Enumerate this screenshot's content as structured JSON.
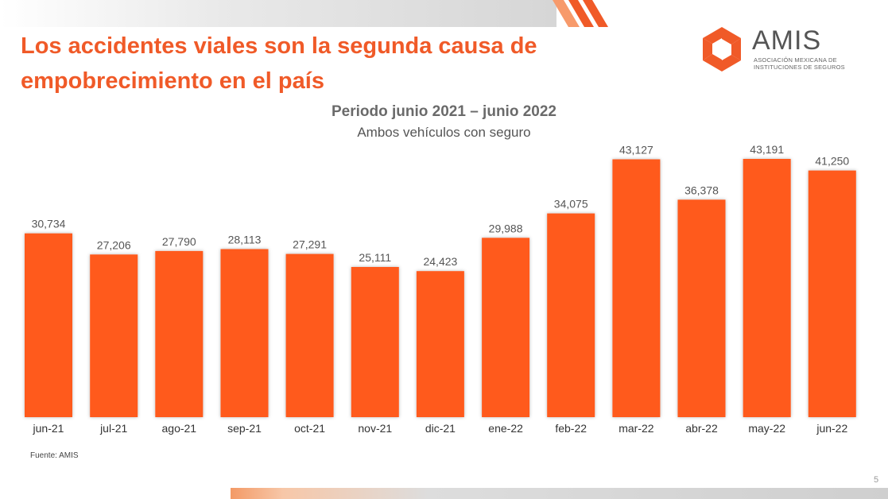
{
  "slide": {
    "title": "Los accidentes viales son la segunda causa de empobrecimiento en el país",
    "source": "Fuente: AMIS",
    "page_number": "5"
  },
  "logo": {
    "wordmark": "AMIS",
    "subtitle_line1": "ASOCIACIÓN MEXICANA DE",
    "subtitle_line2": "INSTITUCIONES DE SEGUROS",
    "icon": "hexagon-swirl-logo-icon"
  },
  "colors": {
    "accent": "#f05a28",
    "bar": "#ff5a1f",
    "text_gray": "#555555"
  },
  "chart_data": {
    "type": "bar",
    "title": "Periodo junio 2021 – junio 2022",
    "subtitle": "Ambos vehículos con seguro",
    "categories": [
      "jun-21",
      "jul-21",
      "ago-21",
      "sep-21",
      "oct-21",
      "nov-21",
      "dic-21",
      "ene-22",
      "feb-22",
      "mar-22",
      "abr-22",
      "may-22",
      "jun-22"
    ],
    "values": [
      30734,
      27206,
      27790,
      28113,
      27291,
      25111,
      24423,
      29988,
      34075,
      43127,
      36378,
      43191,
      41250
    ],
    "value_labels": [
      "30,734",
      "27,206",
      "27,790",
      "28,113",
      "27,291",
      "25,111",
      "24,423",
      "29,988",
      "34,075",
      "43,127",
      "36,378",
      "43,191",
      "41,250"
    ],
    "ylim": [
      0,
      50000
    ],
    "grid": false,
    "legend": "none"
  }
}
